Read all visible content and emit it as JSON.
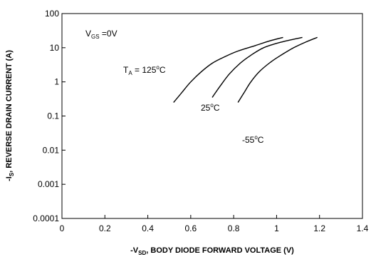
{
  "chart_data": {
    "type": "line",
    "title": "",
    "xlabel": {
      "prefix": "-V",
      "sub": "SD",
      "rest": ",  BODY DIODE FORWARD VOLTAGE (V)"
    },
    "ylabel": {
      "prefix": "-I",
      "sub": "S",
      "rest": ", REVERSE DRAIN CURRENT (A)"
    },
    "x_scale": "linear",
    "y_scale": "log",
    "xlim": [
      0,
      1.4
    ],
    "ylim": [
      0.0001,
      100
    ],
    "x_ticks": [
      "0",
      "0.2",
      "0.4",
      "0.6",
      "0.8",
      "1",
      "1.2",
      "1.4"
    ],
    "y_ticks": [
      "0.0001",
      "0.001",
      "0.01",
      "0.1",
      "1",
      "10",
      "100"
    ],
    "grid": false,
    "annotations": {
      "vgs": {
        "prefix": "V",
        "sub": "GS",
        "rest": " =0V"
      },
      "t125": {
        "prefix": "T",
        "sub": "A",
        "mid": " = 125",
        "sup": "o",
        "rest": "C"
      },
      "t25": {
        "prefix": "25",
        "sup": "o",
        "rest": "C"
      },
      "tm55": {
        "prefix": "-55",
        "sup": "o",
        "rest": "C"
      }
    },
    "series": [
      {
        "points": [
          [
            0.52,
            0.25
          ],
          [
            0.56,
            0.5
          ],
          [
            0.6,
            1
          ],
          [
            0.65,
            2
          ],
          [
            0.7,
            3.5
          ],
          [
            0.76,
            5.5
          ],
          [
            0.82,
            8
          ],
          [
            0.9,
            11.5
          ],
          [
            0.97,
            16
          ],
          [
            1.03,
            20
          ]
        ]
      },
      {
        "points": [
          [
            0.7,
            0.35
          ],
          [
            0.74,
            0.8
          ],
          [
            0.78,
            1.7
          ],
          [
            0.83,
            3.5
          ],
          [
            0.88,
            6
          ],
          [
            0.94,
            10
          ],
          [
            1.02,
            14.5
          ],
          [
            1.12,
            20
          ]
        ]
      },
      {
        "points": [
          [
            0.82,
            0.25
          ],
          [
            0.85,
            0.5
          ],
          [
            0.88,
            1
          ],
          [
            0.92,
            2
          ],
          [
            0.97,
            3.7
          ],
          [
            1.02,
            6
          ],
          [
            1.08,
            10
          ],
          [
            1.14,
            15
          ],
          [
            1.19,
            20
          ]
        ]
      }
    ]
  }
}
